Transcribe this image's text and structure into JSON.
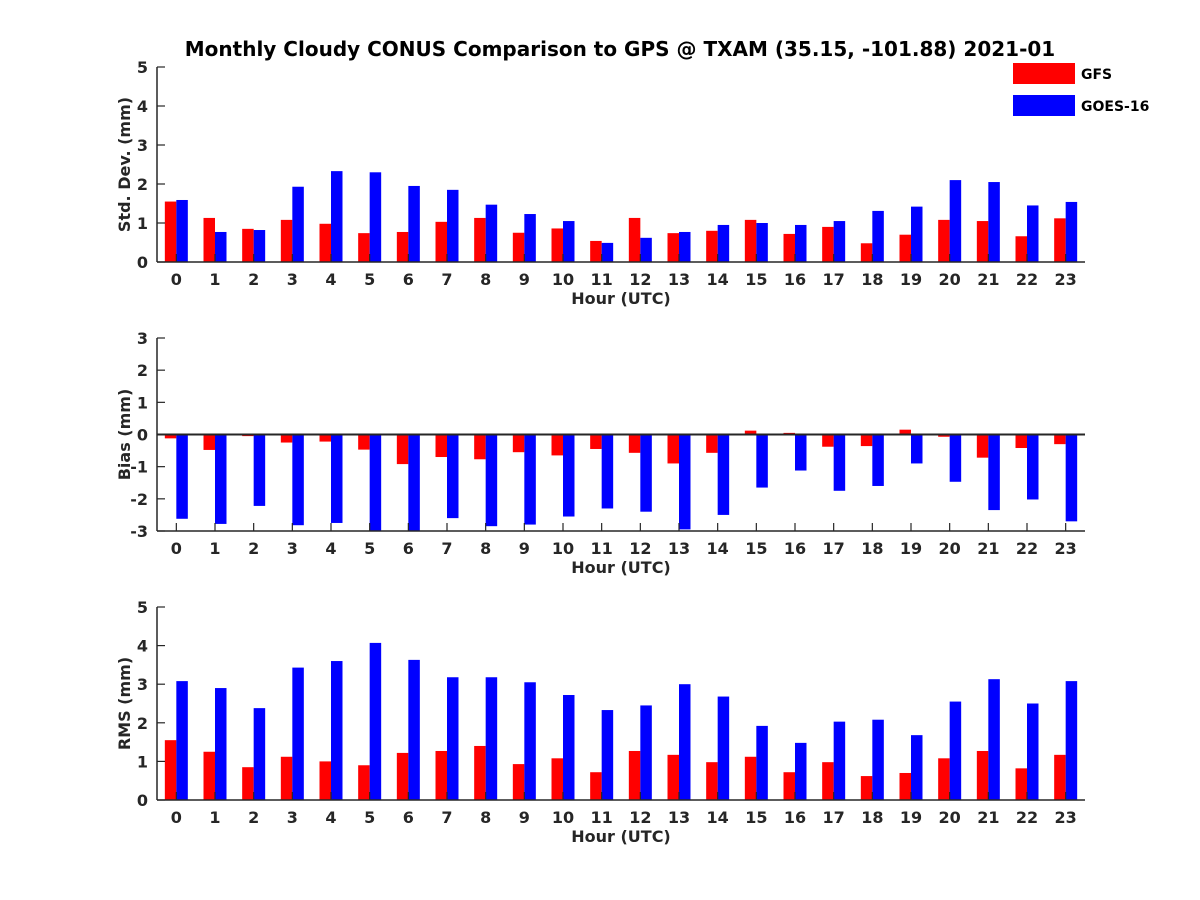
{
  "title": "Monthly Cloudy CONUS Comparison to GPS @ TXAM (35.15, -101.88) 2021-01",
  "legend": [
    {
      "name": "GFS",
      "color": "#ff0000"
    },
    {
      "name": "GOES-16",
      "color": "#0000ff"
    }
  ],
  "colors": {
    "gfs": "#ff0000",
    "goes": "#0000ff",
    "axis": "#262626"
  },
  "chart_data": [
    {
      "type": "bar",
      "ylabel": "Std. Dev. (mm)",
      "xlabel": "Hour (UTC)",
      "ylim": [
        0,
        5
      ],
      "yticks": [
        0,
        1,
        2,
        3,
        4,
        5
      ],
      "categories": [
        "0",
        "1",
        "2",
        "3",
        "4",
        "5",
        "6",
        "7",
        "8",
        "9",
        "10",
        "11",
        "12",
        "13",
        "14",
        "15",
        "16",
        "17",
        "18",
        "19",
        "20",
        "21",
        "22",
        "23"
      ],
      "series": [
        {
          "name": "GFS",
          "values": [
            1.55,
            1.13,
            0.85,
            1.08,
            0.98,
            0.74,
            0.77,
            1.03,
            1.13,
            0.75,
            0.86,
            0.54,
            1.13,
            0.74,
            0.8,
            1.08,
            0.72,
            0.9,
            0.48,
            0.7,
            1.08,
            1.05,
            0.66,
            1.12
          ]
        },
        {
          "name": "GOES-16",
          "values": [
            1.59,
            0.77,
            0.82,
            1.93,
            2.33,
            2.3,
            1.95,
            1.85,
            1.47,
            1.23,
            1.05,
            0.49,
            0.62,
            0.77,
            0.95,
            1.0,
            0.95,
            1.05,
            1.31,
            1.42,
            2.1,
            2.05,
            1.45,
            1.54
          ]
        }
      ]
    },
    {
      "type": "bar",
      "ylabel": "Bias (mm)",
      "xlabel": "Hour (UTC)",
      "ylim": [
        -3,
        3
      ],
      "yticks": [
        -3,
        -2,
        -1,
        0,
        1,
        2,
        3
      ],
      "categories": [
        "0",
        "1",
        "2",
        "3",
        "4",
        "5",
        "6",
        "7",
        "8",
        "9",
        "10",
        "11",
        "12",
        "13",
        "14",
        "15",
        "16",
        "17",
        "18",
        "19",
        "20",
        "21",
        "22",
        "23"
      ],
      "series": [
        {
          "name": "GFS",
          "values": [
            -0.12,
            -0.48,
            -0.05,
            -0.25,
            -0.22,
            -0.47,
            -0.92,
            -0.7,
            -0.77,
            -0.55,
            -0.65,
            -0.45,
            -0.57,
            -0.9,
            -0.57,
            0.12,
            0.05,
            -0.38,
            -0.36,
            0.15,
            -0.07,
            -0.72,
            -0.42,
            -0.3
          ]
        },
        {
          "name": "GOES-16",
          "values": [
            -2.62,
            -2.78,
            -2.22,
            -2.82,
            -2.75,
            -3.0,
            -3.0,
            -2.6,
            -2.85,
            -2.8,
            -2.55,
            -2.3,
            -2.4,
            -2.95,
            -2.5,
            -1.65,
            -1.12,
            -1.75,
            -1.6,
            -0.9,
            -1.47,
            -2.35,
            -2.02,
            -2.7
          ]
        }
      ]
    },
    {
      "type": "bar",
      "ylabel": "RMS (mm)",
      "xlabel": "Hour (UTC)",
      "ylim": [
        0,
        5
      ],
      "yticks": [
        0,
        1,
        2,
        3,
        4,
        5
      ],
      "categories": [
        "0",
        "1",
        "2",
        "3",
        "4",
        "5",
        "6",
        "7",
        "8",
        "9",
        "10",
        "11",
        "12",
        "13",
        "14",
        "15",
        "16",
        "17",
        "18",
        "19",
        "20",
        "21",
        "22",
        "23"
      ],
      "series": [
        {
          "name": "GFS",
          "values": [
            1.55,
            1.25,
            0.85,
            1.12,
            1.0,
            0.9,
            1.22,
            1.27,
            1.4,
            0.93,
            1.08,
            0.72,
            1.27,
            1.17,
            0.98,
            1.12,
            0.72,
            0.98,
            0.62,
            0.7,
            1.08,
            1.27,
            0.82,
            1.17
          ]
        },
        {
          "name": "GOES-16",
          "values": [
            3.08,
            2.9,
            2.38,
            3.43,
            3.6,
            4.07,
            3.63,
            3.18,
            3.18,
            3.05,
            2.72,
            2.33,
            2.45,
            3.0,
            2.68,
            1.92,
            1.48,
            2.03,
            2.08,
            1.68,
            2.55,
            3.13,
            2.5,
            3.08
          ]
        }
      ]
    }
  ]
}
